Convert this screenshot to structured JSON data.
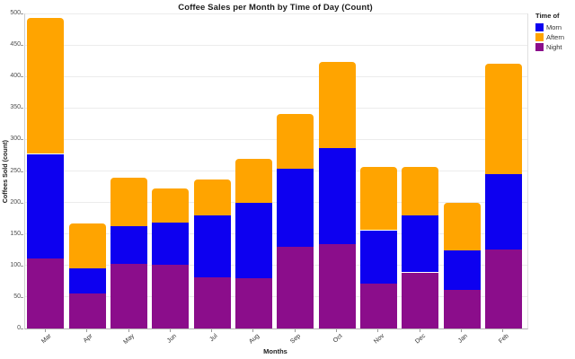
{
  "legend": {
    "title": "Time of",
    "items": [
      {
        "label": "Morn",
        "color": "#0d00f0"
      },
      {
        "label": "Aftern",
        "color": "#ffa400"
      },
      {
        "label": "Night",
        "color": "#8b0d8b"
      }
    ]
  },
  "chart_data": {
    "type": "bar",
    "stacked": true,
    "title": "Coffee Sales per Month by Time of Day (Count)",
    "xlabel": "Months",
    "ylabel": "Coffees Sold (count)",
    "ylim": [
      0,
      500
    ],
    "ytick_step": 50,
    "grid": true,
    "legend_position": "top-right",
    "categories": [
      "Mar",
      "Apr",
      "May",
      "Jun",
      "Jul",
      "Aug",
      "Sep",
      "Oct",
      "Nov",
      "Dec",
      "Jan",
      "Feb"
    ],
    "series": [
      {
        "name": "Morn",
        "color": "#0d00f0",
        "values": [
          166,
          40,
          60,
          67,
          98,
          120,
          123,
          153,
          84,
          91,
          62,
          119
        ]
      },
      {
        "name": "Aftern",
        "color": "#ffa400",
        "values": [
          216,
          72,
          78,
          54,
          57,
          70,
          88,
          136,
          101,
          77,
          75,
          175
        ]
      },
      {
        "name": "Night",
        "color": "#8b0d8b",
        "values": [
          111,
          55,
          102,
          101,
          81,
          80,
          130,
          134,
          72,
          89,
          62,
          126
        ]
      }
    ],
    "stack_order_bottom_to_top": [
      "Night",
      "Morn",
      "Aftern"
    ],
    "totals": [
      493,
      167,
      240,
      222,
      236,
      270,
      341,
      423,
      257,
      257,
      199,
      420
    ]
  }
}
